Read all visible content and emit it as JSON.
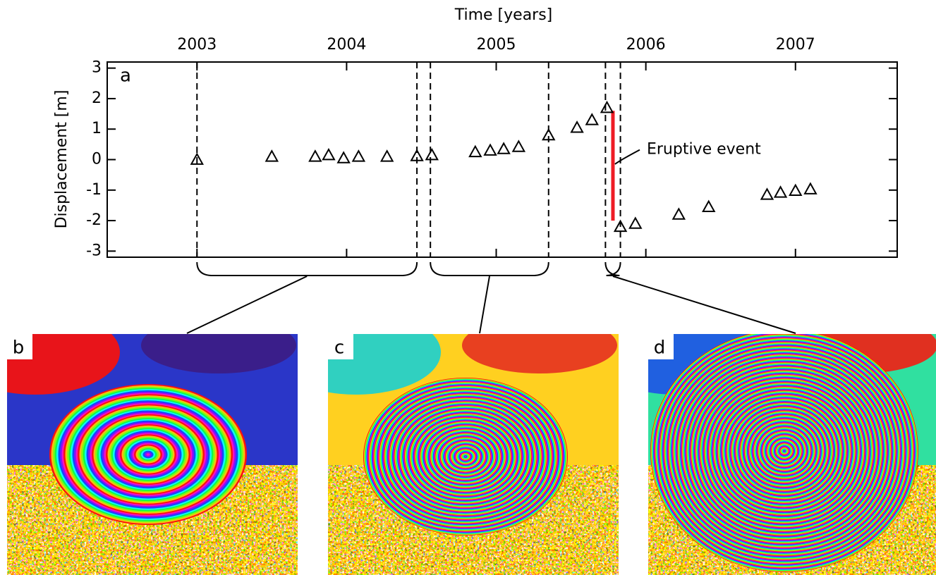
{
  "chart_data": {
    "type": "scatter",
    "x_label": "Time [years]",
    "y_label": "Displacement [m]",
    "panel_label": "a",
    "x": [
      2003.0,
      2003.5,
      2003.79,
      2003.88,
      2003.98,
      2004.08,
      2004.27,
      2004.47,
      2004.57,
      2004.86,
      2004.96,
      2005.05,
      2005.15,
      2005.35,
      2005.54,
      2005.64,
      2005.74,
      2005.83,
      2005.93,
      2006.22,
      2006.42,
      2006.81,
      2006.9,
      2007.0,
      2007.1
    ],
    "values": [
      0,
      0.1,
      0.1,
      0.15,
      0.05,
      0.1,
      0.1,
      0.12,
      0.15,
      0.25,
      0.3,
      0.35,
      0.42,
      0.8,
      1.05,
      1.3,
      1.7,
      -2.2,
      -2.1,
      -1.8,
      -1.55,
      -1.15,
      -1.08,
      -1.02,
      -0.97
    ],
    "marker": "triangle",
    "color": "#000000",
    "xlim": [
      2002.4,
      2007.68
    ],
    "xticks": [
      2003,
      2004,
      2005,
      2006,
      2007
    ],
    "ylim": [
      -3.2,
      3.2
    ],
    "yticks": [
      -3,
      -2,
      -1,
      0,
      1,
      2,
      3
    ],
    "vlines": [
      2003.0,
      2004.47,
      2004.56,
      2005.35,
      2005.73,
      2005.83
    ],
    "event": {
      "label": "Eruptive event",
      "x": 2005.78,
      "ymin": -2.0,
      "ymax": 1.6,
      "color": "#ee1c25"
    }
  },
  "images": [
    {
      "label": "b"
    },
    {
      "label": "c"
    },
    {
      "label": "d"
    }
  ]
}
